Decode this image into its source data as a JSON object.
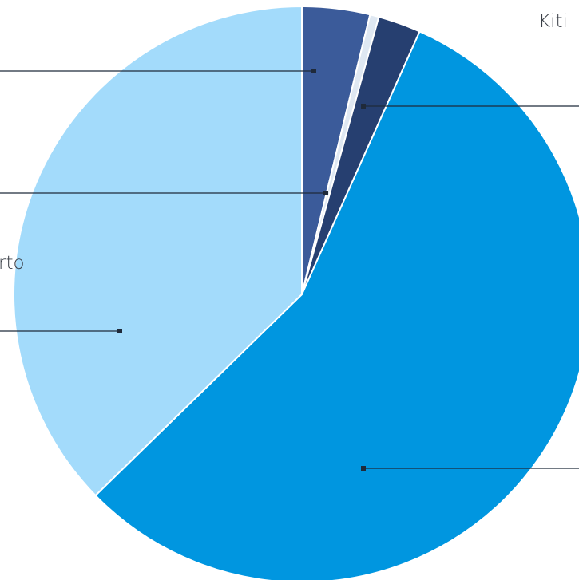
{
  "chart_data": {
    "type": "pie",
    "start_angle_deg": 0,
    "direction": "clockwise",
    "slices": [
      {
        "name": "",
        "value": 3.8,
        "color": "#3b5b9a"
      },
      {
        "name": "",
        "value": 0.5,
        "color": "#dfe8f2"
      },
      {
        "name": "",
        "value": 2.4,
        "color": "#263f70"
      },
      {
        "name": "",
        "value": 56.0,
        "color": "#0096e0"
      },
      {
        "name": "",
        "value": 37.3,
        "color": "#a3dbfb"
      }
    ],
    "visible_label_fragments": {
      "top_right": "Kiti",
      "left": "rto"
    },
    "legend": "none",
    "grid": false
  }
}
